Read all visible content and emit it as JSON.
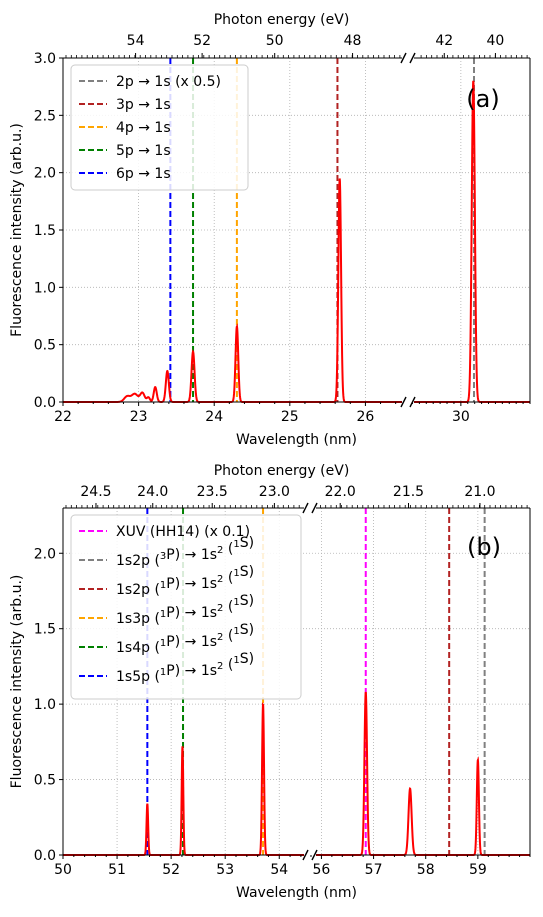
{
  "chart_data": [
    {
      "type": "line",
      "panel_label": "(a)",
      "xlabel": "Wavelength (nm)",
      "ylabel": "Fluorescence intensity (arb.u.)",
      "top_axis_label": "Photon energy (eV)",
      "ylim": [
        0,
        3.0
      ],
      "y_ticks": [
        "0.0",
        "0.5",
        "1.0",
        "1.5",
        "2.0",
        "2.5",
        "3.0"
      ],
      "x_segments": [
        {
          "xlim": [
            22,
            26.55
          ],
          "ticks": [
            22,
            23,
            24,
            25,
            26
          ]
        },
        {
          "xlim": [
            28.5,
            32.0
          ],
          "ticks": [
            30
          ]
        }
      ],
      "x_tick_labels": [
        "22",
        "23",
        "24",
        "25",
        "26",
        "30"
      ],
      "top_ticks": [
        {
          "label": "54",
          "wavelength": 22.96
        },
        {
          "label": "52",
          "wavelength": 23.84
        },
        {
          "label": "50",
          "wavelength": 24.8
        },
        {
          "label": "48",
          "wavelength": 25.83
        },
        {
          "label": "42",
          "wavelength": 29.52
        },
        {
          "label": "40",
          "wavelength": 31.0
        }
      ],
      "grid": true,
      "legend_position": "upper-left",
      "lines": [
        {
          "label": "2p → 1s (x 0.5)",
          "x": 30.38,
          "color": "#808080"
        },
        {
          "label": "3p → 1s",
          "x": 25.63,
          "color": "#b22222"
        },
        {
          "label": "4p → 1s",
          "x": 24.3,
          "color": "#ffa500"
        },
        {
          "label": "5p → 1s",
          "x": 23.72,
          "color": "#008000"
        },
        {
          "label": "6p → 1s",
          "x": 23.42,
          "color": "#0000ff"
        }
      ],
      "spectrum": {
        "color": "#ff0000",
        "peaks": [
          {
            "x": 22.85,
            "y": 0.05,
            "w": 0.04
          },
          {
            "x": 22.95,
            "y": 0.07,
            "w": 0.04
          },
          {
            "x": 23.05,
            "y": 0.08,
            "w": 0.03
          },
          {
            "x": 23.13,
            "y": 0.04,
            "w": 0.02
          },
          {
            "x": 23.22,
            "y": 0.13,
            "w": 0.02
          },
          {
            "x": 23.38,
            "y": 0.27,
            "w": 0.02
          },
          {
            "x": 23.72,
            "y": 0.44,
            "w": 0.02
          },
          {
            "x": 24.3,
            "y": 0.66,
            "w": 0.018
          },
          {
            "x": 25.66,
            "y": 1.95,
            "w": 0.018
          },
          {
            "x": 30.36,
            "y": 2.8,
            "w": 0.045
          }
        ]
      }
    },
    {
      "type": "line",
      "panel_label": "(b)",
      "xlabel": "Wavelength (nm)",
      "ylabel": "Fluorescence intensity (arb.u.)",
      "top_axis_label": "Photon energy (eV)",
      "ylim": [
        0,
        2.3
      ],
      "y_ticks": [
        "0.0",
        "0.5",
        "1.0",
        "1.5",
        "2.0"
      ],
      "x_segments": [
        {
          "xlim": [
            50,
            54.55
          ],
          "ticks": [
            50,
            51,
            52,
            53,
            54
          ]
        },
        {
          "xlim": [
            55.8,
            60.0
          ],
          "ticks": [
            56,
            57,
            58,
            59
          ]
        }
      ],
      "x_tick_labels": [
        "50",
        "51",
        "52",
        "53",
        "54",
        "56",
        "57",
        "58",
        "59"
      ],
      "top_ticks": [
        {
          "label": "24.5",
          "wavelength": 50.61
        },
        {
          "label": "24.0",
          "wavelength": 51.66
        },
        {
          "label": "23.5",
          "wavelength": 52.76
        },
        {
          "label": "23.0",
          "wavelength": 53.91
        },
        {
          "label": "22.0",
          "wavelength": 56.36
        },
        {
          "label": "21.5",
          "wavelength": 57.67
        },
        {
          "label": "21.0",
          "wavelength": 59.04
        }
      ],
      "grid": true,
      "legend_position": "upper-left",
      "lines": [
        {
          "label_main": "XUV (HH14) (x 0.1)",
          "x": 56.85,
          "color": "#ff00ff"
        },
        {
          "label_main": "1s2p (",
          "sup1": "3",
          "mid": "P) → 1s",
          "sup2": "2",
          "mid2": " (",
          "sup3": "1",
          "tail": "S)",
          "x": 59.13,
          "color": "#808080"
        },
        {
          "label_main": "1s2p (",
          "sup1": "1",
          "mid": "P) → 1s",
          "sup2": "2",
          "mid2": " (",
          "sup3": "1",
          "tail": "S)",
          "x": 58.45,
          "color": "#b22222"
        },
        {
          "label_main": "1s3p (",
          "sup1": "1",
          "mid": "P) → 1s",
          "sup2": "2",
          "mid2": " (",
          "sup3": "1",
          "tail": "S)",
          "x": 53.7,
          "color": "#ffa500"
        },
        {
          "label_main": "1s4p (",
          "sup1": "1",
          "mid": "P) → 1s",
          "sup2": "2",
          "mid2": " (",
          "sup3": "1",
          "tail": "S)",
          "x": 52.22,
          "color": "#008000"
        },
        {
          "label_main": "1s5p (",
          "sup1": "1",
          "mid": "P) → 1s",
          "sup2": "2",
          "mid2": " (",
          "sup3": "1",
          "tail": "S)",
          "x": 51.56,
          "color": "#0000ff"
        }
      ],
      "spectrum": {
        "color": "#ff0000",
        "peaks": [
          {
            "x": 51.56,
            "y": 0.34,
            "w": 0.015
          },
          {
            "x": 52.21,
            "y": 0.72,
            "w": 0.015
          },
          {
            "x": 53.7,
            "y": 1.0,
            "w": 0.018
          },
          {
            "x": 56.85,
            "y": 1.08,
            "w": 0.025
          },
          {
            "x": 57.7,
            "y": 0.44,
            "w": 0.03
          },
          {
            "x": 59.0,
            "y": 0.63,
            "w": 0.02
          }
        ]
      }
    }
  ]
}
